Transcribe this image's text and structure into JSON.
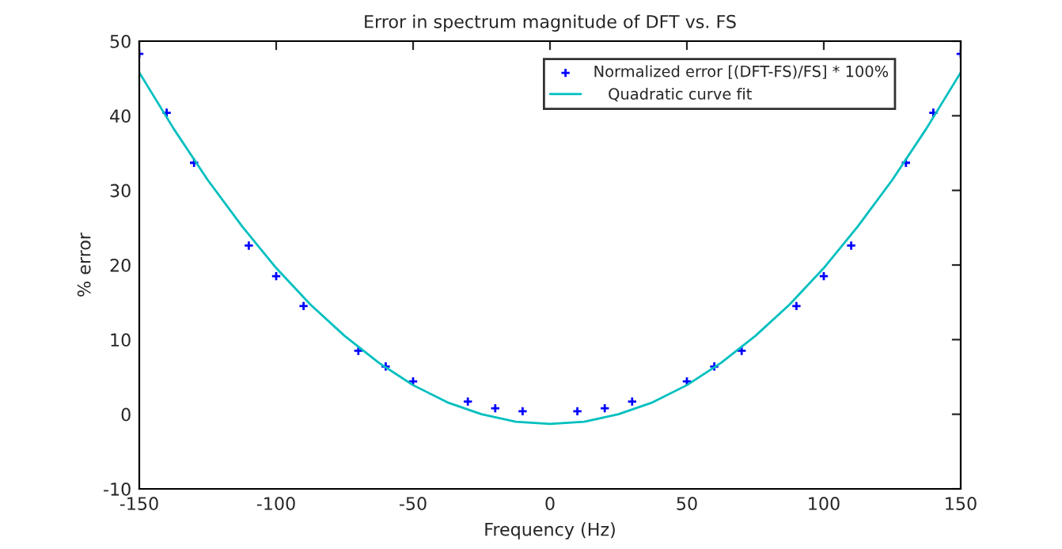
{
  "chart_data": {
    "type": "scatter",
    "title": "Error in spectrum magnitude of DFT vs. FS",
    "xlabel": "Frequency (Hz)",
    "ylabel": "% error",
    "xlim": [
      -150,
      150
    ],
    "xticks": [
      -150,
      -100,
      -50,
      0,
      50,
      100,
      150
    ],
    "ylim": [
      -10,
      50
    ],
    "yticks": [
      -10,
      0,
      10,
      20,
      30,
      40,
      50
    ],
    "grid": false,
    "legend": "top right",
    "series": [
      {
        "name": "Normalized error [(DFT-FS)/FS] * 100%",
        "marker": "cross",
        "color": "#0000ff",
        "x": [
          -150,
          -140,
          -130,
          -110,
          -100,
          -90,
          -70,
          -60,
          -50,
          -30,
          -20,
          -10,
          10,
          20,
          30,
          50,
          60,
          70,
          90,
          100,
          110,
          130,
          140,
          150
        ],
        "values": [
          48.3,
          40.4,
          33.7,
          22.6,
          18.5,
          14.5,
          8.5,
          6.4,
          4.4,
          1.7,
          0.8,
          0.4,
          0.4,
          0.8,
          1.7,
          4.4,
          6.4,
          8.5,
          14.5,
          18.5,
          22.6,
          33.7,
          40.4,
          48.3
        ]
      },
      {
        "name": "   Quadratic curve fit",
        "type": "line",
        "line_style": "solid",
        "color": "#00bfbf",
        "x": [
          -150,
          -137.5,
          -125,
          -112.5,
          -100,
          -87.5,
          -75,
          -62.5,
          -50,
          -37.5,
          -25,
          -12.5,
          0,
          12.5,
          25,
          37.5,
          50,
          62.5,
          75,
          87.5,
          100,
          112.5,
          125,
          137.5,
          150
        ],
        "values": [
          45.8,
          38.3,
          31.4,
          25.2,
          19.6,
          14.7,
          10.5,
          6.9,
          3.9,
          1.6,
          0.0,
          -1.0,
          -1.3,
          -1.0,
          0.0,
          1.6,
          3.9,
          6.9,
          10.5,
          14.7,
          19.6,
          25.2,
          31.4,
          38.3,
          45.8
        ]
      }
    ]
  }
}
